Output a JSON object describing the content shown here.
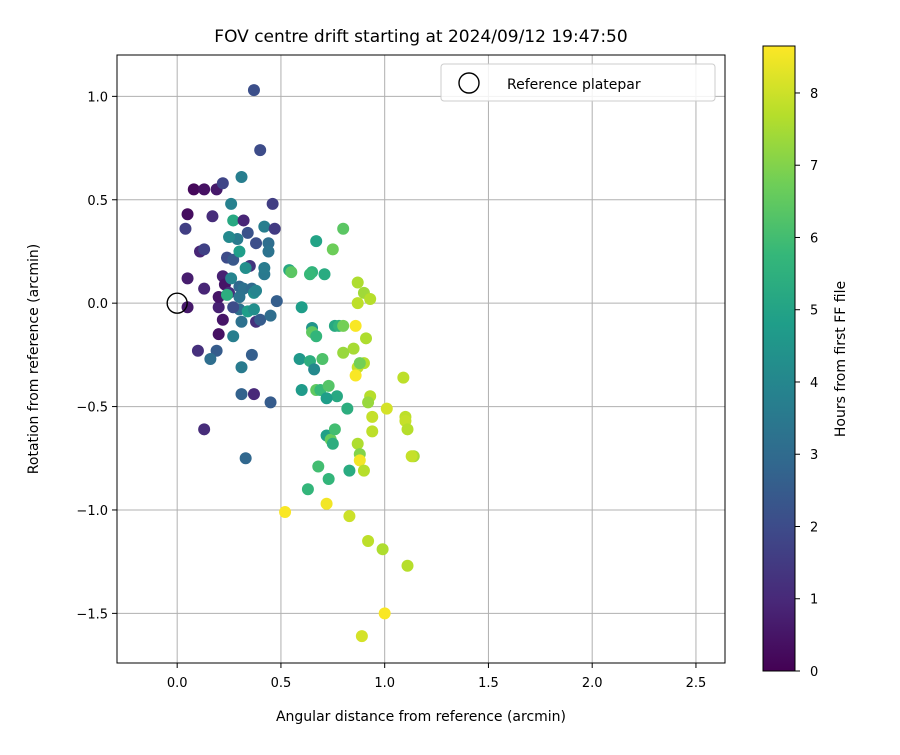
{
  "chart_data": {
    "type": "scatter",
    "title": "FOV centre drift starting at 2024/09/12 19:47:50",
    "xlabel": "Angular distance from reference (arcmin)",
    "ylabel": "Rotation from reference (arcmin)",
    "xlim": [
      -0.29,
      2.64
    ],
    "ylim": [
      -1.74,
      1.2
    ],
    "xticks": [
      0.0,
      0.5,
      1.0,
      1.5,
      2.0,
      2.5
    ],
    "xtick_labels": [
      "0.0",
      "0.5",
      "1.0",
      "1.5",
      "2.0",
      "2.5"
    ],
    "yticks": [
      1.0,
      0.5,
      0.0,
      -0.5,
      -1.0,
      -1.5
    ],
    "ytick_labels": [
      "1.0",
      "0.5",
      "0.0",
      "−0.5",
      "−1.0",
      "−1.5"
    ],
    "grid": true,
    "legend": {
      "label": "Reference platepar",
      "position": "top-right"
    },
    "reference_point": {
      "x": 0.0,
      "y": 0.0
    },
    "colorbar": {
      "label": "Hours from first FF file",
      "range": [
        0,
        8.65
      ],
      "ticks": [
        0,
        1,
        2,
        3,
        4,
        5,
        6,
        7,
        8
      ],
      "tick_labels": [
        "0",
        "1",
        "2",
        "3",
        "4",
        "5",
        "6",
        "7",
        "8"
      ],
      "colormap": "viridis",
      "colors": [
        "#440154",
        "#482878",
        "#3e4989",
        "#31688e",
        "#26828e",
        "#1f9e89",
        "#35b779",
        "#6ece58",
        "#b5de2b",
        "#fde725"
      ]
    },
    "points": [
      {
        "x": 0.08,
        "y": 0.55,
        "h": 0.2
      },
      {
        "x": 0.13,
        "y": 0.55,
        "h": 0.4
      },
      {
        "x": 0.19,
        "y": 0.55,
        "h": 0.6
      },
      {
        "x": 0.22,
        "y": 0.58,
        "h": 1.8
      },
      {
        "x": 0.05,
        "y": 0.43,
        "h": 0.3
      },
      {
        "x": 0.04,
        "y": 0.36,
        "h": 1.6
      },
      {
        "x": 0.11,
        "y": 0.25,
        "h": 0.9
      },
      {
        "x": 0.13,
        "y": 0.26,
        "h": 1.7
      },
      {
        "x": 0.17,
        "y": 0.42,
        "h": 1.1
      },
      {
        "x": 0.05,
        "y": 0.12,
        "h": 0.7
      },
      {
        "x": 0.13,
        "y": 0.07,
        "h": 0.9
      },
      {
        "x": 0.05,
        "y": -0.02,
        "h": 0.6
      },
      {
        "x": 0.2,
        "y": -0.02,
        "h": 0.8
      },
      {
        "x": 0.22,
        "y": -0.08,
        "h": 0.5
      },
      {
        "x": 0.2,
        "y": -0.15,
        "h": 0.4
      },
      {
        "x": 0.19,
        "y": -0.23,
        "h": 2.5
      },
      {
        "x": 0.1,
        "y": -0.23,
        "h": 1.2
      },
      {
        "x": 0.16,
        "y": -0.27,
        "h": 3.1
      },
      {
        "x": 0.13,
        "y": -0.61,
        "h": 1.1
      },
      {
        "x": 0.22,
        "y": 0.13,
        "h": 0.8
      },
      {
        "x": 0.23,
        "y": 0.09,
        "h": 0.5
      },
      {
        "x": 0.25,
        "y": 0.05,
        "h": 1.2
      },
      {
        "x": 0.2,
        "y": 0.03,
        "h": 0.5
      },
      {
        "x": 0.24,
        "y": 0.22,
        "h": 2.0
      },
      {
        "x": 0.27,
        "y": 0.21,
        "h": 2.4
      },
      {
        "x": 0.26,
        "y": 0.12,
        "h": 3.9
      },
      {
        "x": 0.24,
        "y": 0.04,
        "h": 5.4
      },
      {
        "x": 0.29,
        "y": 0.31,
        "h": 3.6
      },
      {
        "x": 0.3,
        "y": 0.25,
        "h": 4.8
      },
      {
        "x": 0.27,
        "y": 0.4,
        "h": 5.2
      },
      {
        "x": 0.26,
        "y": 0.48,
        "h": 3.8
      },
      {
        "x": 0.25,
        "y": 0.32,
        "h": 4.1
      },
      {
        "x": 0.32,
        "y": 0.4,
        "h": 0.9
      },
      {
        "x": 0.34,
        "y": 0.34,
        "h": 2.2
      },
      {
        "x": 0.31,
        "y": 0.61,
        "h": 3.7
      },
      {
        "x": 0.4,
        "y": 0.74,
        "h": 2.0
      },
      {
        "x": 0.37,
        "y": 1.03,
        "h": 2.1
      },
      {
        "x": 0.42,
        "y": 0.37,
        "h": 3.7
      },
      {
        "x": 0.46,
        "y": 0.48,
        "h": 1.6
      },
      {
        "x": 0.47,
        "y": 0.36,
        "h": 1.5
      },
      {
        "x": 0.38,
        "y": 0.29,
        "h": 2.1
      },
      {
        "x": 0.44,
        "y": 0.29,
        "h": 3.1
      },
      {
        "x": 0.44,
        "y": 0.25,
        "h": 3.3
      },
      {
        "x": 0.35,
        "y": 0.18,
        "h": 1.3
      },
      {
        "x": 0.33,
        "y": 0.17,
        "h": 4.3
      },
      {
        "x": 0.42,
        "y": 0.14,
        "h": 3.5
      },
      {
        "x": 0.42,
        "y": 0.17,
        "h": 3.6
      },
      {
        "x": 0.3,
        "y": 0.08,
        "h": 2.9
      },
      {
        "x": 0.32,
        "y": 0.07,
        "h": 3.2
      },
      {
        "x": 0.36,
        "y": 0.07,
        "h": 3.0
      },
      {
        "x": 0.3,
        "y": 0.03,
        "h": 3.3
      },
      {
        "x": 0.3,
        "y": -0.03,
        "h": 3.2
      },
      {
        "x": 0.34,
        "y": -0.04,
        "h": 4.8
      },
      {
        "x": 0.27,
        "y": -0.02,
        "h": 2.0
      },
      {
        "x": 0.31,
        "y": -0.09,
        "h": 3.2
      },
      {
        "x": 0.37,
        "y": 0.05,
        "h": 4.2
      },
      {
        "x": 0.38,
        "y": 0.06,
        "h": 3.9
      },
      {
        "x": 0.37,
        "y": -0.03,
        "h": 4.3
      },
      {
        "x": 0.38,
        "y": -0.09,
        "h": 1.2
      },
      {
        "x": 0.4,
        "y": -0.08,
        "h": 2.5
      },
      {
        "x": 0.45,
        "y": -0.06,
        "h": 3.1
      },
      {
        "x": 0.48,
        "y": 0.01,
        "h": 2.6
      },
      {
        "x": 0.27,
        "y": -0.16,
        "h": 3.7
      },
      {
        "x": 0.36,
        "y": -0.25,
        "h": 2.6
      },
      {
        "x": 0.31,
        "y": -0.31,
        "h": 3.6
      },
      {
        "x": 0.31,
        "y": -0.44,
        "h": 2.7
      },
      {
        "x": 0.37,
        "y": -0.44,
        "h": 1.0
      },
      {
        "x": 0.45,
        "y": -0.48,
        "h": 2.5
      },
      {
        "x": 0.33,
        "y": -0.75,
        "h": 2.9
      },
      {
        "x": 0.54,
        "y": 0.16,
        "h": 5.2
      },
      {
        "x": 0.55,
        "y": 0.15,
        "h": 6.4
      },
      {
        "x": 0.65,
        "y": 0.15,
        "h": 5.6
      },
      {
        "x": 0.64,
        "y": 0.14,
        "h": 5.8
      },
      {
        "x": 0.71,
        "y": 0.14,
        "h": 5.3
      },
      {
        "x": 0.67,
        "y": 0.3,
        "h": 5.0
      },
      {
        "x": 0.75,
        "y": 0.26,
        "h": 6.7
      },
      {
        "x": 0.8,
        "y": 0.36,
        "h": 6.4
      },
      {
        "x": 0.6,
        "y": -0.02,
        "h": 4.8
      },
      {
        "x": 0.65,
        "y": -0.12,
        "h": 4.5
      },
      {
        "x": 0.65,
        "y": -0.14,
        "h": 6.5
      },
      {
        "x": 0.67,
        "y": -0.16,
        "h": 5.7
      },
      {
        "x": 0.76,
        "y": -0.11,
        "h": 5.2
      },
      {
        "x": 0.78,
        "y": -0.11,
        "h": 5.6
      },
      {
        "x": 0.8,
        "y": -0.11,
        "h": 6.8
      },
      {
        "x": 0.59,
        "y": -0.27,
        "h": 4.6
      },
      {
        "x": 0.64,
        "y": -0.28,
        "h": 5.4
      },
      {
        "x": 0.66,
        "y": -0.32,
        "h": 4.1
      },
      {
        "x": 0.7,
        "y": -0.27,
        "h": 6.2
      },
      {
        "x": 0.6,
        "y": -0.42,
        "h": 4.7
      },
      {
        "x": 0.67,
        "y": -0.42,
        "h": 6.5
      },
      {
        "x": 0.69,
        "y": -0.42,
        "h": 5.8
      },
      {
        "x": 0.73,
        "y": -0.4,
        "h": 6.3
      },
      {
        "x": 0.77,
        "y": -0.45,
        "h": 5.2
      },
      {
        "x": 0.72,
        "y": -0.46,
        "h": 4.8
      },
      {
        "x": 0.82,
        "y": -0.51,
        "h": 5.4
      },
      {
        "x": 0.72,
        "y": -0.64,
        "h": 4.9
      },
      {
        "x": 0.74,
        "y": -0.66,
        "h": 6.6
      },
      {
        "x": 0.76,
        "y": -0.61,
        "h": 6.0
      },
      {
        "x": 0.75,
        "y": -0.68,
        "h": 5.4
      },
      {
        "x": 0.68,
        "y": -0.79,
        "h": 6.0
      },
      {
        "x": 0.73,
        "y": -0.85,
        "h": 5.7
      },
      {
        "x": 0.83,
        "y": -0.81,
        "h": 5.3
      },
      {
        "x": 0.63,
        "y": -0.9,
        "h": 5.7
      },
      {
        "x": 0.87,
        "y": 0.1,
        "h": 7.6
      },
      {
        "x": 0.9,
        "y": 0.05,
        "h": 7.4
      },
      {
        "x": 0.93,
        "y": 0.02,
        "h": 7.7
      },
      {
        "x": 0.87,
        "y": 0.0,
        "h": 7.8
      },
      {
        "x": 0.86,
        "y": -0.11,
        "h": 8.6
      },
      {
        "x": 0.91,
        "y": -0.17,
        "h": 7.6
      },
      {
        "x": 0.85,
        "y": -0.22,
        "h": 7.5
      },
      {
        "x": 0.8,
        "y": -0.24,
        "h": 7.3
      },
      {
        "x": 0.9,
        "y": -0.29,
        "h": 7.7
      },
      {
        "x": 0.87,
        "y": -0.31,
        "h": 7.9
      },
      {
        "x": 0.88,
        "y": -0.29,
        "h": 6.8
      },
      {
        "x": 0.86,
        "y": -0.35,
        "h": 8.6
      },
      {
        "x": 0.93,
        "y": -0.45,
        "h": 7.7
      },
      {
        "x": 0.92,
        "y": -0.48,
        "h": 7.3
      },
      {
        "x": 0.94,
        "y": -0.55,
        "h": 7.9
      },
      {
        "x": 1.01,
        "y": -0.51,
        "h": 8.1
      },
      {
        "x": 0.94,
        "y": -0.62,
        "h": 7.8
      },
      {
        "x": 0.87,
        "y": -0.68,
        "h": 7.6
      },
      {
        "x": 0.88,
        "y": -0.73,
        "h": 7.0
      },
      {
        "x": 0.88,
        "y": -0.76,
        "h": 8.5
      },
      {
        "x": 0.9,
        "y": -0.81,
        "h": 7.7
      },
      {
        "x": 1.09,
        "y": -0.36,
        "h": 7.8
      },
      {
        "x": 1.1,
        "y": -0.55,
        "h": 7.8
      },
      {
        "x": 1.1,
        "y": -0.57,
        "h": 7.9
      },
      {
        "x": 1.11,
        "y": -0.61,
        "h": 7.7
      },
      {
        "x": 1.14,
        "y": -0.74,
        "h": 7.5
      },
      {
        "x": 1.13,
        "y": -0.74,
        "h": 7.9
      },
      {
        "x": 0.52,
        "y": -1.01,
        "h": 8.6
      },
      {
        "x": 0.72,
        "y": -0.97,
        "h": 8.5
      },
      {
        "x": 0.83,
        "y": -1.03,
        "h": 8.0
      },
      {
        "x": 0.92,
        "y": -1.15,
        "h": 7.8
      },
      {
        "x": 0.99,
        "y": -1.19,
        "h": 7.6
      },
      {
        "x": 1.11,
        "y": -1.27,
        "h": 7.7
      },
      {
        "x": 1.0,
        "y": -1.5,
        "h": 8.6
      },
      {
        "x": 0.89,
        "y": -1.61,
        "h": 8.1
      }
    ]
  }
}
